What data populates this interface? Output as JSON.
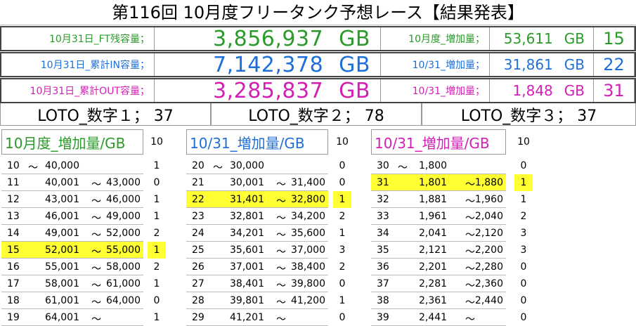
{
  "title": "第116回 10月度フリータンク予想レース【結果発表】",
  "summary": [
    {
      "label": "10月31日_FT残容量；",
      "value": "3,856,937",
      "unit": "GB",
      "right_label": "10月度_増加量；",
      "right_value": "53,611",
      "right_unit": "GB",
      "num": "15",
      "color": "#2a9a2a"
    },
    {
      "label": "10月31日_累計IN容量；",
      "value": "7,142,378",
      "unit": "GB",
      "right_label": "10/31_増加量；",
      "right_value": "31,861",
      "right_unit": "GB",
      "num": "22",
      "color": "#1e6fd8"
    },
    {
      "label": "10月31日_累計OUT容量；",
      "value": "3,285,837",
      "unit": "GB",
      "right_label": "10/31_増加量；",
      "right_value": "1,848",
      "right_unit": "GB",
      "num": "31",
      "color": "#d21fb5"
    }
  ],
  "loto": [
    "LOTO_数字１； 37",
    "LOTO_数字２； 78",
    "LOTO_数字３； 37"
  ],
  "tables": [
    {
      "header": "10月度_増加量/GB",
      "count_header": "10",
      "color": "#2a9a2a",
      "rows": [
        {
          "n": "10",
          "a": "～",
          "b": "40,000",
          "c": "",
          "cnt": "1"
        },
        {
          "n": "11",
          "a": "40,001",
          "b": "～",
          "c": "43,000",
          "cnt": "0"
        },
        {
          "n": "12",
          "a": "43,001",
          "b": "～",
          "c": "46,000",
          "cnt": "1"
        },
        {
          "n": "13",
          "a": "46,001",
          "b": "～",
          "c": "49,000",
          "cnt": "1"
        },
        {
          "n": "14",
          "a": "49,001",
          "b": "～",
          "c": "52,000",
          "cnt": "2"
        },
        {
          "n": "15",
          "a": "52,001",
          "b": "～",
          "c": "55,000",
          "cnt": "1",
          "hl": true
        },
        {
          "n": "16",
          "a": "55,001",
          "b": "～",
          "c": "58,000",
          "cnt": "2"
        },
        {
          "n": "17",
          "a": "58,001",
          "b": "～",
          "c": "61,000",
          "cnt": "1"
        },
        {
          "n": "18",
          "a": "61,001",
          "b": "～",
          "c": "64,000",
          "cnt": "0"
        },
        {
          "n": "19",
          "a": "64,001",
          "b": "～",
          "c": "",
          "cnt": "1"
        }
      ]
    },
    {
      "header": "10/31_増加量/GB",
      "count_header": "10",
      "color": "#1e6fd8",
      "rows": [
        {
          "n": "20",
          "a": "～",
          "b": "30,000",
          "c": "",
          "cnt": "0"
        },
        {
          "n": "21",
          "a": "30,001",
          "b": "～",
          "c": "31,400",
          "cnt": "0"
        },
        {
          "n": "22",
          "a": "31,401",
          "b": "～",
          "c": "32,800",
          "cnt": "1",
          "hl": true
        },
        {
          "n": "23",
          "a": "32,801",
          "b": "～",
          "c": "34,200",
          "cnt": "2"
        },
        {
          "n": "24",
          "a": "34,201",
          "b": "～",
          "c": "35,600",
          "cnt": "1"
        },
        {
          "n": "25",
          "a": "35,601",
          "b": "～",
          "c": "37,000",
          "cnt": "3"
        },
        {
          "n": "26",
          "a": "37,001",
          "b": "～",
          "c": "38,400",
          "cnt": "2"
        },
        {
          "n": "27",
          "a": "38,401",
          "b": "～",
          "c": "39,800",
          "cnt": "0"
        },
        {
          "n": "28",
          "a": "39,801",
          "b": "～",
          "c": "41,200",
          "cnt": "1"
        },
        {
          "n": "29",
          "a": "41,201",
          "b": "～",
          "c": "",
          "cnt": "0"
        }
      ]
    },
    {
      "header": "10/31_増加量/GB",
      "count_header": "10",
      "color": "#d21fb5",
      "rows": [
        {
          "n": "30",
          "a": "～",
          "b": "1,800",
          "c": "",
          "cnt": "0"
        },
        {
          "n": "31",
          "a": "1,801",
          "b": "～",
          "c": "1,880",
          "cnt": "1",
          "hl": true
        },
        {
          "n": "32",
          "a": "1,881",
          "b": "～",
          "c": "1,960",
          "cnt": "1"
        },
        {
          "n": "33",
          "a": "1,961",
          "b": "～",
          "c": "2,040",
          "cnt": "2"
        },
        {
          "n": "34",
          "a": "2,041",
          "b": "～",
          "c": "2,120",
          "cnt": "3"
        },
        {
          "n": "35",
          "a": "2,121",
          "b": "～",
          "c": "2,200",
          "cnt": "3"
        },
        {
          "n": "36",
          "a": "2,201",
          "b": "～",
          "c": "2,280",
          "cnt": "0"
        },
        {
          "n": "37",
          "a": "2,281",
          "b": "～",
          "c": "2,360",
          "cnt": "0"
        },
        {
          "n": "38",
          "a": "2,361",
          "b": "～",
          "c": "2,440",
          "cnt": "0"
        },
        {
          "n": "39",
          "a": "2,441",
          "b": "～",
          "c": "",
          "cnt": "0"
        }
      ]
    }
  ]
}
